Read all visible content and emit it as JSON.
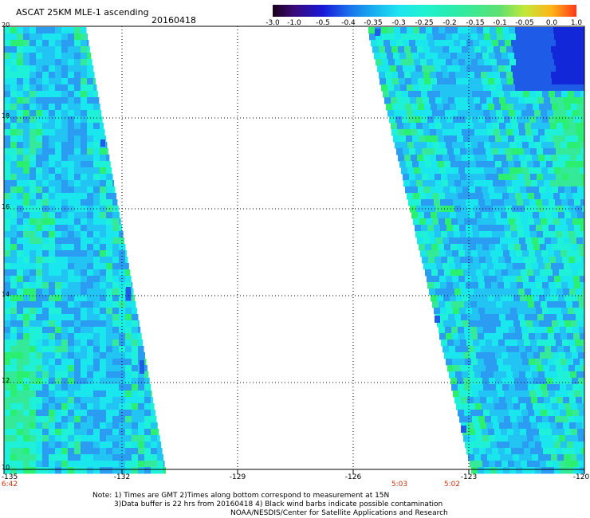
{
  "header": {
    "title": "ASCAT 25KM MLE-1 ascending",
    "date": "20160418"
  },
  "colorbar": {
    "labels": [
      "-3.0",
      "-1.0",
      "-0.5",
      "-0.4",
      "-0.35",
      "-0.3",
      "-0.25",
      "-0.2",
      "-0.15",
      "-0.1",
      "-0.05",
      "0.0",
      "1.0"
    ],
    "colors": [
      "#1a0018",
      "#3a0a7a",
      "#1818d8",
      "#1a6eea",
      "#18aef0",
      "#1ee4f0",
      "#20f2d0",
      "#28ecb0",
      "#3ee890",
      "#60e070",
      "#c2e838",
      "#ffb418",
      "#ff3818"
    ]
  },
  "map": {
    "lat_labels": [
      "20",
      "18",
      "16",
      "14",
      "12",
      "10"
    ],
    "lon_labels": [
      "-135",
      "-132",
      "-129",
      "-126",
      "-123",
      "-120"
    ],
    "time_labels": [
      "6:42",
      "5:03",
      "5:02"
    ],
    "swath_colors": {
      "base": "#1ff0d8",
      "cyan": "#1ae6ee",
      "light_blue": "#22c4f4",
      "blue": "#2a9cf2",
      "deep_blue": "#1e5ce8",
      "navy": "#1228d8",
      "green": "#34ea98",
      "bright_green": "#2aef70"
    }
  },
  "notes": {
    "line1": "Note: 1) Times are GMT 2)Times along bottom correspond to measurement at 15N",
    "line2": "3)Data buffer is 22 hrs from 20160418 4) Black wind barbs indicate possible contamination",
    "line3": "NOAA/NESDIS/Center for Satellite Applications and Research"
  }
}
